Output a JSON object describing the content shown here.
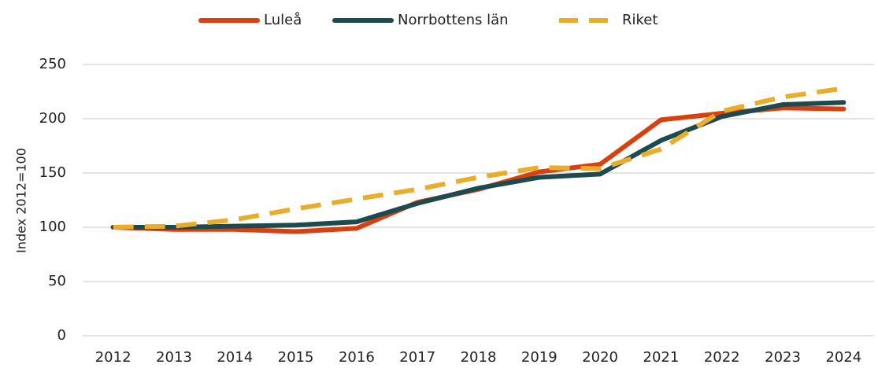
{
  "chart_data": {
    "type": "line",
    "categories": [
      "2012",
      "2013",
      "2014",
      "2015",
      "2016",
      "2017",
      "2018",
      "2019",
      "2020",
      "2021",
      "2022",
      "2023",
      "2024"
    ],
    "y_label": "Index 2012=100",
    "ylim": [
      0,
      250
    ],
    "yticks": [
      0,
      50,
      100,
      150,
      200,
      250
    ],
    "grid": true,
    "legend": "top",
    "series": [
      {
        "name": "Luleå",
        "color": "#d9400f",
        "dashed": false,
        "values": [
          100,
          98,
          98,
          96,
          99,
          123,
          135,
          151,
          158,
          199,
          205,
          210,
          209
        ]
      },
      {
        "name": "Norrbottens län",
        "color": "#1d4a4f",
        "dashed": false,
        "values": [
          100,
          100,
          101,
          102,
          105,
          122,
          136,
          146,
          149,
          180,
          202,
          213,
          215
        ]
      },
      {
        "name": "Riket",
        "color": "#e8ad2a",
        "dashed": true,
        "values": [
          100,
          101,
          107,
          117,
          126,
          135,
          146,
          155,
          154,
          172,
          207,
          220,
          228
        ]
      }
    ]
  }
}
